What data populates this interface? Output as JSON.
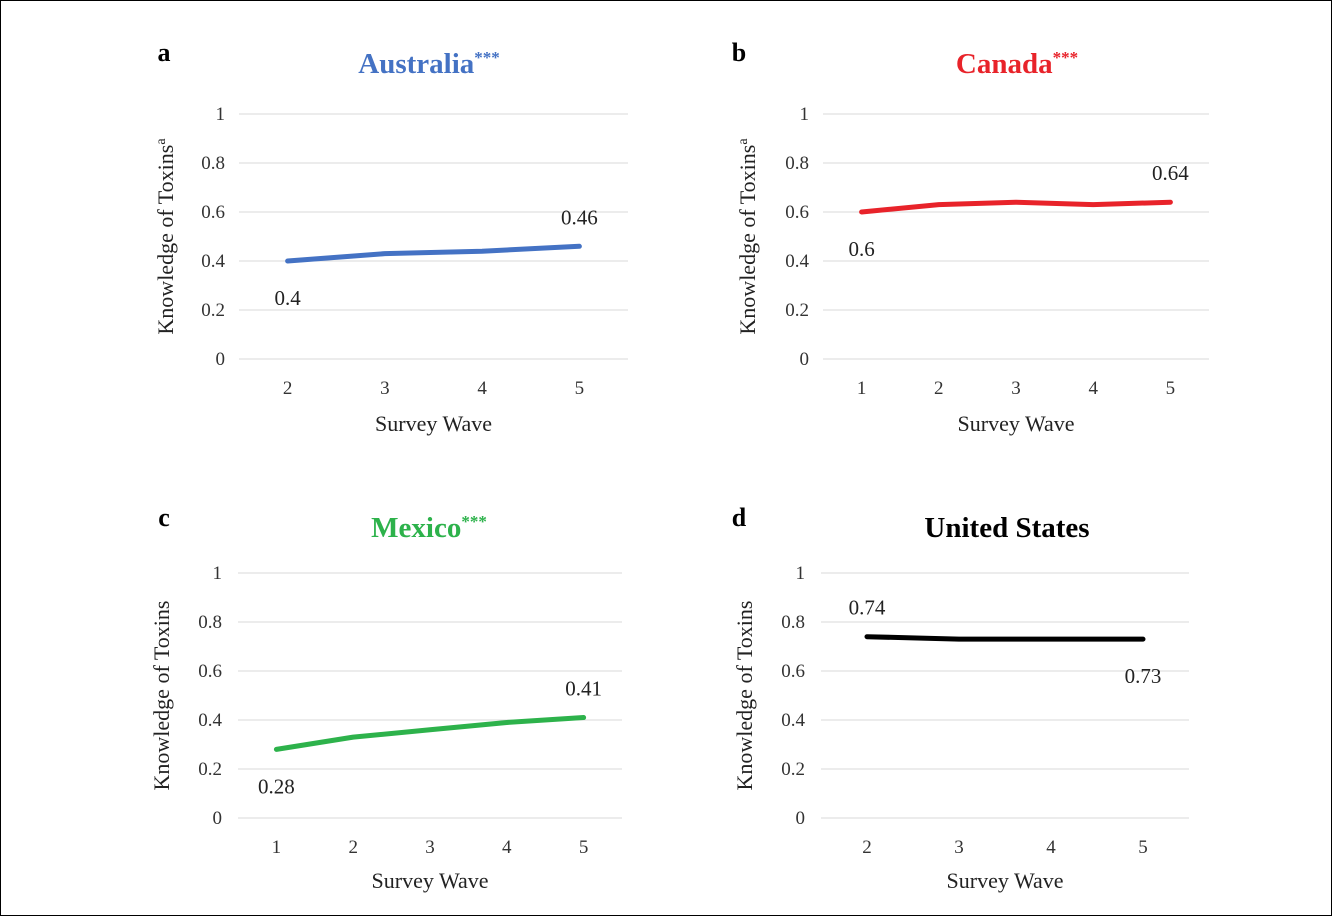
{
  "chart_data": [
    {
      "panel": "a",
      "type": "line",
      "title": "Australia",
      "title_suffix": "***",
      "color": "#4472C4",
      "x": [
        2,
        3,
        4,
        5
      ],
      "categories": [
        "2",
        "3",
        "4",
        "5"
      ],
      "series": [
        {
          "values": [
            0.4,
            0.43,
            0.44,
            0.46
          ]
        }
      ],
      "data_labels": [
        {
          "index": 0,
          "text": "0.4",
          "position": "below"
        },
        {
          "index": 3,
          "text": "0.46",
          "position": "above"
        }
      ],
      "xlabel": "Survey Wave",
      "ylabel": "Knowledge of Toxins",
      "ylabel_superscript": "a",
      "ylim": [
        0,
        1
      ],
      "yticks": [
        "0",
        "0.2",
        "0.4",
        "0.6",
        "0.8",
        "1"
      ],
      "grid": true
    },
    {
      "panel": "b",
      "type": "line",
      "title": "Canada",
      "title_suffix": "***",
      "color": "#E8232A",
      "x": [
        1,
        2,
        3,
        4,
        5
      ],
      "categories": [
        "1",
        "2",
        "3",
        "4",
        "5"
      ],
      "series": [
        {
          "values": [
            0.6,
            0.63,
            0.64,
            0.63,
            0.64
          ]
        }
      ],
      "data_labels": [
        {
          "index": 0,
          "text": "0.6",
          "position": "below"
        },
        {
          "index": 4,
          "text": "0.64",
          "position": "above"
        }
      ],
      "xlabel": "Survey Wave",
      "ylabel": "Knowledge of Toxins",
      "ylabel_superscript": "a",
      "ylim": [
        0,
        1
      ],
      "yticks": [
        "0",
        "0.2",
        "0.4",
        "0.6",
        "0.8",
        "1"
      ],
      "grid": true
    },
    {
      "panel": "c",
      "type": "line",
      "title": "Mexico",
      "title_suffix": "***",
      "color": "#2DB24B",
      "x": [
        1,
        2,
        3,
        4,
        5
      ],
      "categories": [
        "1",
        "2",
        "3",
        "4",
        "5"
      ],
      "series": [
        {
          "values": [
            0.28,
            0.33,
            0.36,
            0.39,
            0.41
          ]
        }
      ],
      "data_labels": [
        {
          "index": 0,
          "text": "0.28",
          "position": "below"
        },
        {
          "index": 4,
          "text": "0.41",
          "position": "above"
        }
      ],
      "xlabel": "Survey Wave",
      "ylabel": "Knowledge of Toxins",
      "ylabel_superscript": "",
      "ylim": [
        0,
        1
      ],
      "yticks": [
        "0",
        "0.2",
        "0.4",
        "0.6",
        "0.8",
        "1"
      ],
      "grid": true
    },
    {
      "panel": "d",
      "type": "line",
      "title": "United States",
      "title_suffix": "",
      "color": "#000000",
      "title_color": "#000000",
      "x": [
        2,
        3,
        4,
        5
      ],
      "categories": [
        "2",
        "3",
        "4",
        "5"
      ],
      "series": [
        {
          "values": [
            0.74,
            0.73,
            0.73,
            0.73
          ]
        }
      ],
      "data_labels": [
        {
          "index": 0,
          "text": "0.74",
          "position": "above"
        },
        {
          "index": 3,
          "text": "0.73",
          "position": "below"
        }
      ],
      "xlabel": "Survey Wave",
      "ylabel": "Knowledge of Toxins",
      "ylabel_superscript": "",
      "ylim": [
        0,
        1
      ],
      "yticks": [
        "0",
        "0.2",
        "0.4",
        "0.6",
        "0.8",
        "1"
      ],
      "grid": true
    }
  ]
}
